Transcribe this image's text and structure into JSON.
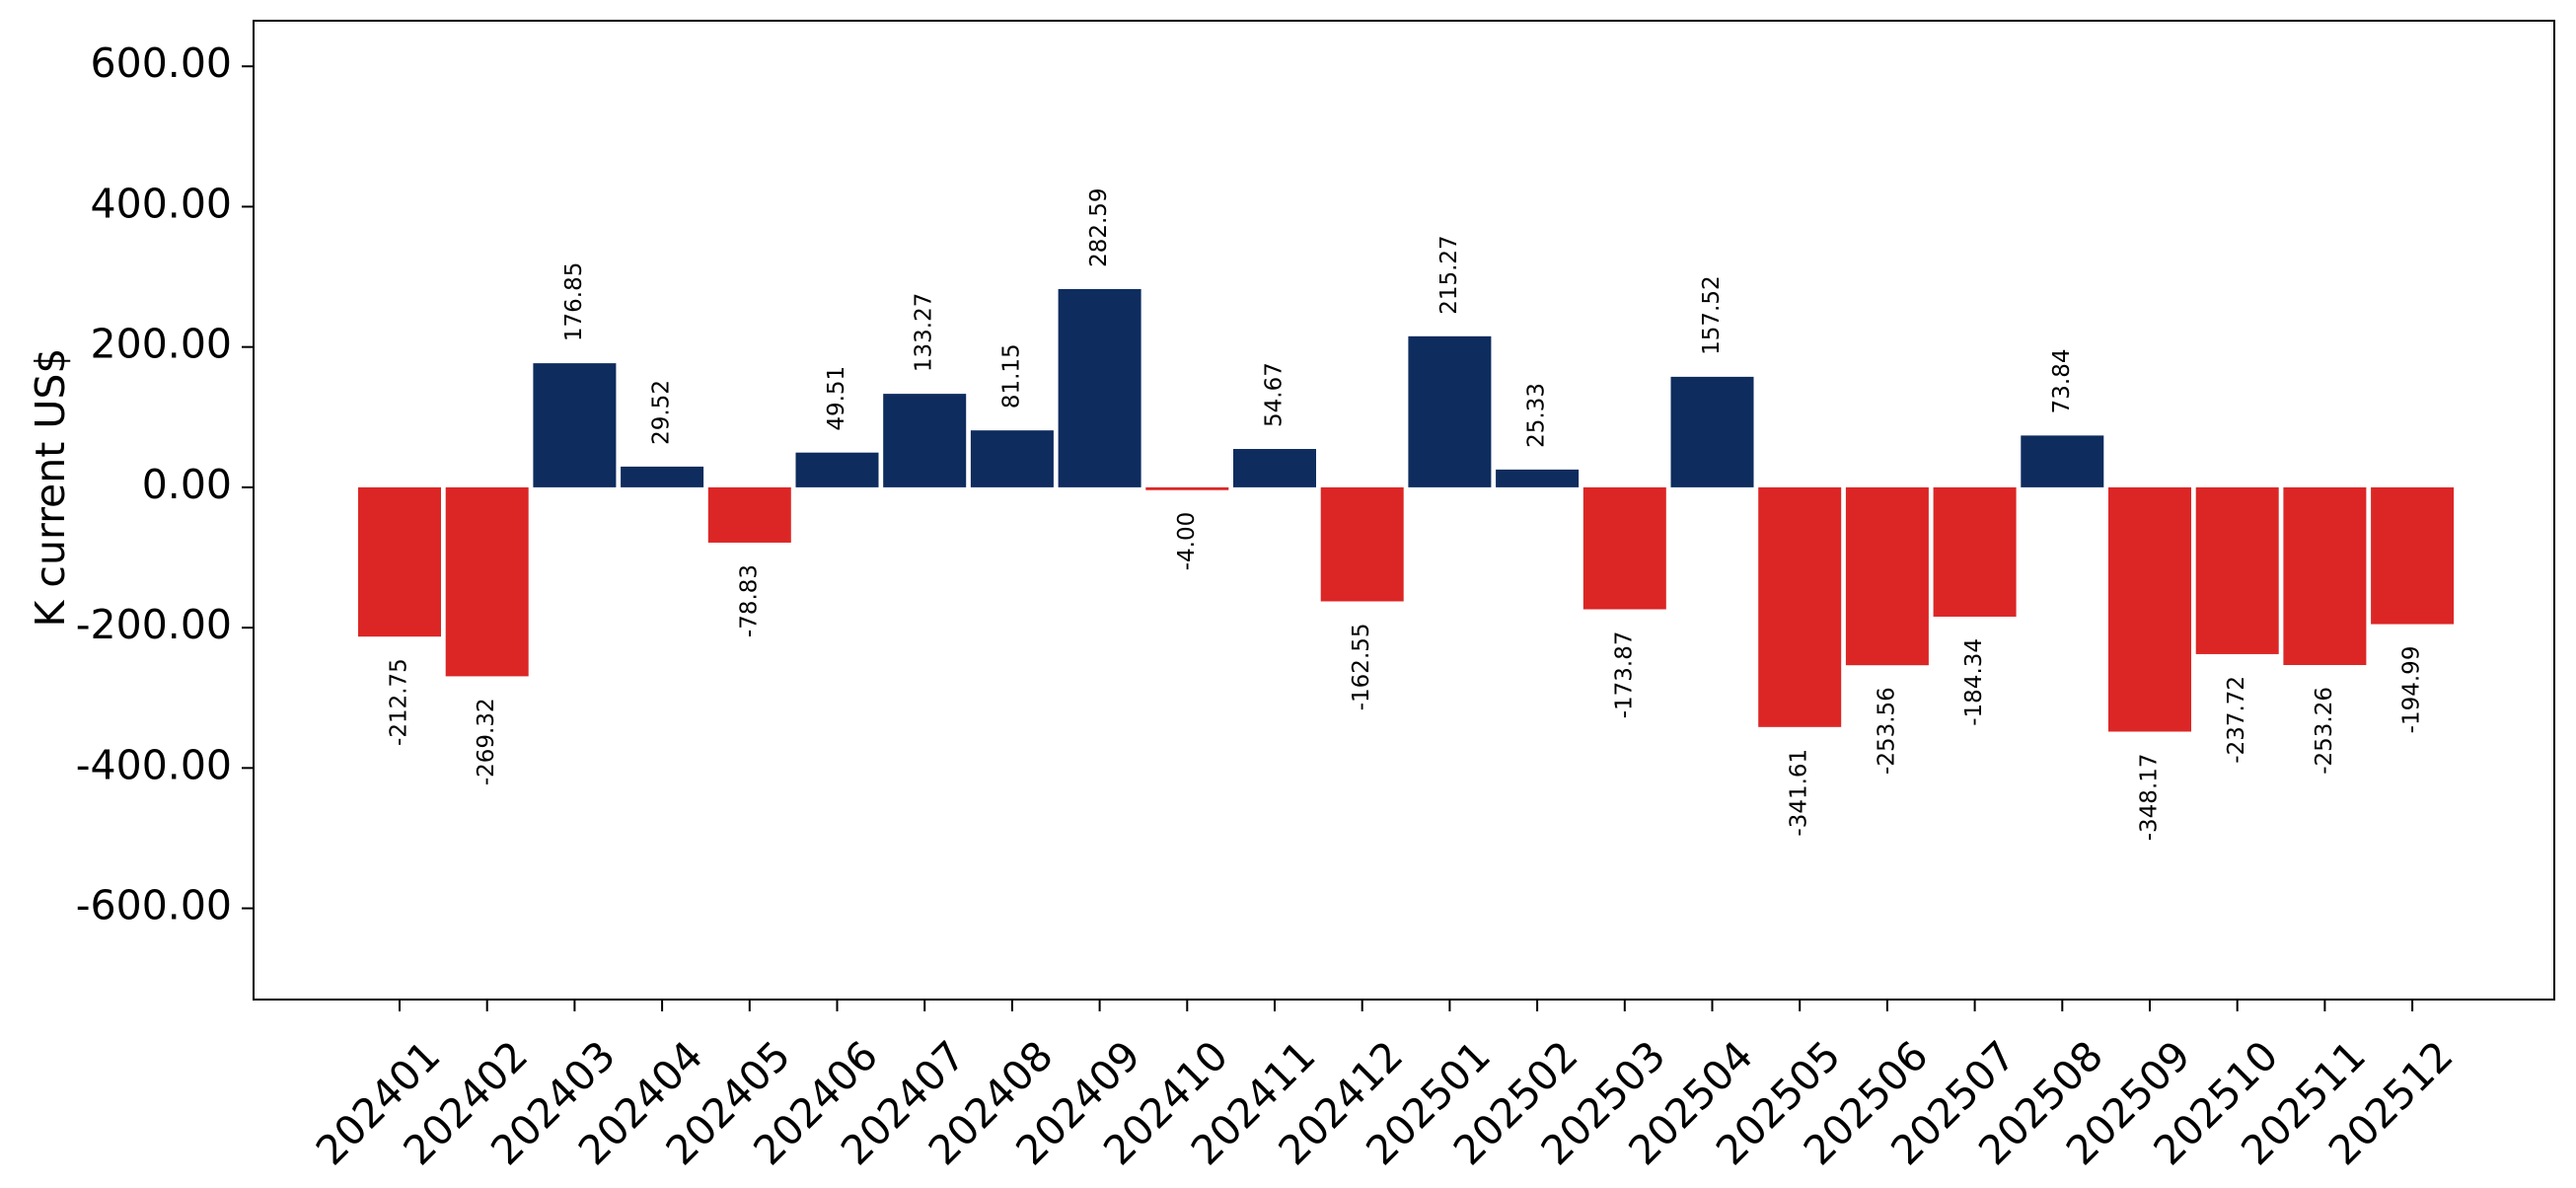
{
  "chart_data": {
    "type": "bar",
    "title": "",
    "xlabel": "",
    "ylabel": "K current US$",
    "ylim": [
      -730,
      665
    ],
    "yticks": [
      600,
      400,
      200,
      0,
      -200,
      -400,
      -600
    ],
    "ytick_labels": [
      "600.00",
      "400.00",
      "200.00",
      "0.00",
      "-200.00",
      "-400.00",
      "-600.00"
    ],
    "grid": false,
    "legend": "none",
    "colors": {
      "positive": "#0e2c5e",
      "negative": "#dc2626",
      "axis": "#000000"
    },
    "categories": [
      "202401",
      "202402",
      "202403",
      "202404",
      "202405",
      "202406",
      "202407",
      "202408",
      "202409",
      "202410",
      "202411",
      "202412",
      "202501",
      "202502",
      "202503",
      "202504",
      "202505",
      "202506",
      "202507",
      "202508",
      "202509",
      "202510",
      "202511",
      "202512"
    ],
    "values": [
      -212.75,
      -269.32,
      176.85,
      29.52,
      -78.83,
      49.51,
      133.27,
      81.15,
      282.59,
      -4.0,
      54.67,
      -162.55,
      215.27,
      25.33,
      -173.87,
      157.52,
      -341.61,
      -253.56,
      -184.34,
      73.84,
      -348.17,
      -237.72,
      -253.26,
      -194.99
    ],
    "data_labels": [
      "-212.75",
      "-269.32",
      "176.85",
      "29.52",
      "-78.83",
      "49.51",
      "133.27",
      "81.15",
      "282.59",
      "-4.00",
      "54.67",
      "-162.55",
      "215.27",
      "25.33",
      "-173.87",
      "157.52",
      "-341.61",
      "-253.56",
      "-184.34",
      "73.84",
      "-348.17",
      "-237.72",
      "-253.26",
      "-194.99"
    ]
  }
}
